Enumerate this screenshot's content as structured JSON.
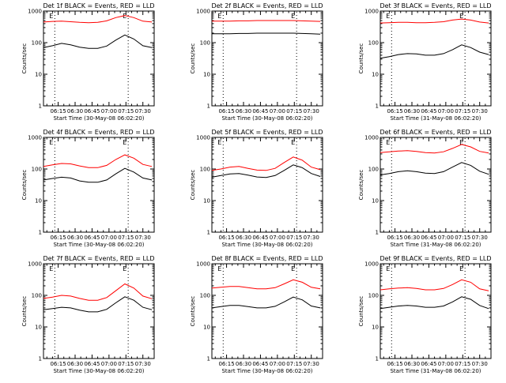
{
  "colors": {
    "events": "#000000",
    "lld": "#ff0000",
    "axis": "#000000",
    "background": "#ffffff"
  },
  "chart_data": [
    {
      "type": "line",
      "title": "Det 1f BLACK = Events, RED = LLD",
      "xlabel": "Start Time (30-May-08 06:02:20)",
      "ylabel": "Counts/sec",
      "x_ticks": [
        "06:15",
        "06:30",
        "06:45",
        "07:00",
        "07:15",
        "07:30"
      ],
      "y_ticks": [
        "1",
        "10",
        "100",
        "1000"
      ],
      "y_scale": "log",
      "ylim": [
        1,
        1000
      ],
      "xlim": [
        "06:02",
        "07:40"
      ],
      "markers": {
        "vlines": [
          "06:12",
          "07:17"
        ],
        "labels": [
          "E",
          "E"
        ]
      },
      "series": [
        {
          "name": "Events",
          "color": "#000000",
          "x": [
            "06:02",
            "06:10",
            "06:18",
            "06:26",
            "06:34",
            "06:42",
            "06:50",
            "06:58",
            "07:06",
            "07:14",
            "07:22",
            "07:30",
            "07:38"
          ],
          "y": [
            70,
            80,
            95,
            85,
            72,
            66,
            66,
            78,
            120,
            175,
            130,
            80,
            70
          ]
        },
        {
          "name": "LLD",
          "color": "#ff0000",
          "x": [
            "06:02",
            "06:10",
            "06:18",
            "06:26",
            "06:34",
            "06:42",
            "06:50",
            "06:58",
            "07:06",
            "07:14",
            "07:22",
            "07:30",
            "07:38"
          ],
          "y": [
            450,
            470,
            480,
            460,
            440,
            430,
            440,
            490,
            620,
            720,
            620,
            480,
            450
          ]
        }
      ]
    },
    {
      "type": "line",
      "title": "Det 2f BLACK = Events, RED = LLD",
      "xlabel": "Start Time (30-May-08 06:02:20)",
      "ylabel": "Counts/sec",
      "x_ticks": [
        "06:15",
        "06:30",
        "06:45",
        "07:00",
        "07:15",
        "07:30"
      ],
      "y_ticks": [
        "1",
        "10",
        "100",
        "1000"
      ],
      "y_scale": "log",
      "ylim": [
        1,
        1000
      ],
      "xlim": [
        "06:02",
        "07:40"
      ],
      "markers": {
        "vlines": [
          "06:12",
          "07:17"
        ],
        "labels": [
          "E",
          "E"
        ]
      },
      "series": [
        {
          "name": "Events",
          "color": "#000000",
          "x": [
            "06:02",
            "06:10",
            "06:18",
            "06:26",
            "06:34",
            "06:42",
            "06:50",
            "06:58",
            "07:06",
            "07:14",
            "07:22",
            "07:30",
            "07:38"
          ],
          "y": [
            190,
            190,
            190,
            195,
            195,
            200,
            200,
            200,
            200,
            200,
            195,
            190,
            185
          ]
        },
        {
          "name": "LLD",
          "color": "#ff0000",
          "x": [
            "06:02",
            "06:10",
            "06:18",
            "06:26",
            "06:34",
            "06:42",
            "06:50",
            "06:58",
            "07:06",
            "07:14",
            "07:22",
            "07:30",
            "07:38"
          ],
          "y": [
            480,
            480,
            480,
            490,
            490,
            500,
            500,
            500,
            500,
            500,
            490,
            480,
            470
          ]
        }
      ]
    },
    {
      "type": "line",
      "title": "Det 3f BLACK = Events, RED = LLD",
      "xlabel": "Start Time (31-May-08 06:02:20)",
      "ylabel": "Counts/sec",
      "x_ticks": [
        "06:15",
        "06:30",
        "06:45",
        "07:00",
        "07:15",
        "07:30"
      ],
      "y_ticks": [
        "1",
        "10",
        "100",
        "1000"
      ],
      "y_scale": "log",
      "ylim": [
        1,
        1000
      ],
      "xlim": [
        "06:02",
        "07:40"
      ],
      "markers": {
        "vlines": [
          "06:12",
          "07:17"
        ],
        "labels": [
          "E",
          "E"
        ]
      },
      "series": [
        {
          "name": "Events",
          "color": "#000000",
          "x": [
            "06:02",
            "06:10",
            "06:18",
            "06:26",
            "06:34",
            "06:42",
            "06:50",
            "06:58",
            "07:06",
            "07:14",
            "07:22",
            "07:30",
            "07:38"
          ],
          "y": [
            32,
            36,
            42,
            45,
            44,
            40,
            40,
            45,
            60,
            85,
            70,
            50,
            42
          ]
        },
        {
          "name": "LLD",
          "color": "#ff0000",
          "x": [
            "06:02",
            "06:10",
            "06:18",
            "06:26",
            "06:34",
            "06:42",
            "06:50",
            "06:58",
            "07:06",
            "07:14",
            "07:22",
            "07:30",
            "07:38"
          ],
          "y": [
            420,
            430,
            440,
            440,
            430,
            430,
            440,
            460,
            520,
            560,
            520,
            450,
            420
          ]
        }
      ]
    },
    {
      "type": "line",
      "title": "Det 4f BLACK = Events, RED = LLD",
      "xlabel": "Start Time (30-May-08 06:02:20)",
      "ylabel": "Counts/sec",
      "x_ticks": [
        "06:15",
        "06:30",
        "06:45",
        "07:00",
        "07:15",
        "07:30"
      ],
      "y_ticks": [
        "1",
        "10",
        "100",
        "1000"
      ],
      "y_scale": "log",
      "ylim": [
        1,
        1000
      ],
      "xlim": [
        "06:02",
        "07:40"
      ],
      "markers": {
        "vlines": [
          "06:12",
          "07:17"
        ],
        "labels": [
          "E",
          "E"
        ]
      },
      "series": [
        {
          "name": "Events",
          "color": "#000000",
          "x": [
            "06:02",
            "06:10",
            "06:18",
            "06:26",
            "06:34",
            "06:42",
            "06:50",
            "06:58",
            "07:06",
            "07:14",
            "07:22",
            "07:30",
            "07:38"
          ],
          "y": [
            45,
            50,
            55,
            52,
            42,
            38,
            38,
            45,
            70,
            105,
            80,
            52,
            45
          ]
        },
        {
          "name": "LLD",
          "color": "#ff0000",
          "x": [
            "06:02",
            "06:10",
            "06:18",
            "06:26",
            "06:34",
            "06:42",
            "06:50",
            "06:58",
            "07:06",
            "07:14",
            "07:22",
            "07:30",
            "07:38"
          ],
          "y": [
            120,
            135,
            150,
            145,
            125,
            110,
            110,
            130,
            200,
            280,
            220,
            140,
            120
          ]
        }
      ]
    },
    {
      "type": "line",
      "title": "Det 5f BLACK = Events, RED = LLD",
      "xlabel": "Start Time (30-May-08 06:02:20)",
      "ylabel": "Counts/sec",
      "x_ticks": [
        "06:15",
        "06:30",
        "06:45",
        "07:00",
        "07:15",
        "07:30"
      ],
      "y_ticks": [
        "1",
        "10",
        "100",
        "1000"
      ],
      "y_scale": "log",
      "ylim": [
        1,
        1000
      ],
      "xlim": [
        "06:02",
        "07:40"
      ],
      "markers": {
        "vlines": [
          "06:12",
          "07:17"
        ],
        "labels": [
          "E",
          "E"
        ]
      },
      "series": [
        {
          "name": "Events",
          "color": "#000000",
          "x": [
            "06:02",
            "06:10",
            "06:18",
            "06:26",
            "06:34",
            "06:42",
            "06:50",
            "06:58",
            "07:06",
            "07:14",
            "07:22",
            "07:30",
            "07:38"
          ],
          "y": [
            55,
            62,
            70,
            72,
            64,
            56,
            54,
            62,
            90,
            135,
            110,
            72,
            58
          ]
        },
        {
          "name": "LLD",
          "color": "#ff0000",
          "x": [
            "06:02",
            "06:10",
            "06:18",
            "06:26",
            "06:34",
            "06:42",
            "06:50",
            "06:58",
            "07:06",
            "07:14",
            "07:22",
            "07:30",
            "07:38"
          ],
          "y": [
            90,
            100,
            115,
            120,
            105,
            92,
            90,
            105,
            160,
            240,
            190,
            115,
            95
          ]
        }
      ]
    },
    {
      "type": "line",
      "title": "Det 6f BLACK = Events, RED = LLD",
      "xlabel": "Start Time (31-May-08 06:02:20)",
      "ylabel": "Counts/sec",
      "x_ticks": [
        "06:15",
        "06:30",
        "06:45",
        "07:00",
        "07:15",
        "07:30"
      ],
      "y_ticks": [
        "1",
        "10",
        "100",
        "1000"
      ],
      "y_scale": "log",
      "ylim": [
        1,
        1000
      ],
      "xlim": [
        "06:02",
        "07:40"
      ],
      "markers": {
        "vlines": [
          "06:12",
          "07:17"
        ],
        "labels": [
          "E",
          "E"
        ]
      },
      "series": [
        {
          "name": "Events",
          "color": "#000000",
          "x": [
            "06:02",
            "06:10",
            "06:18",
            "06:26",
            "06:34",
            "06:42",
            "06:50",
            "06:58",
            "07:06",
            "07:14",
            "07:22",
            "07:30",
            "07:38"
          ],
          "y": [
            65,
            72,
            82,
            88,
            82,
            74,
            72,
            82,
            115,
            160,
            130,
            85,
            68
          ]
        },
        {
          "name": "LLD",
          "color": "#ff0000",
          "x": [
            "06:02",
            "06:10",
            "06:18",
            "06:26",
            "06:34",
            "06:42",
            "06:50",
            "06:58",
            "07:06",
            "07:14",
            "07:22",
            "07:30",
            "07:38"
          ],
          "y": [
            330,
            350,
            370,
            380,
            360,
            330,
            320,
            350,
            450,
            600,
            500,
            360,
            320
          ]
        }
      ]
    },
    {
      "type": "line",
      "title": "Det 7f BLACK = Events, RED = LLD",
      "xlabel": "Start Time (30-May-08 06:02:20)",
      "ylabel": "Counts/sec",
      "x_ticks": [
        "06:15",
        "06:30",
        "06:45",
        "07:00",
        "07:15",
        "07:30"
      ],
      "y_ticks": [
        "1",
        "10",
        "100",
        "1000"
      ],
      "y_scale": "log",
      "ylim": [
        1,
        1000
      ],
      "xlim": [
        "06:02",
        "07:40"
      ],
      "markers": {
        "vlines": [
          "06:12",
          "07:17"
        ],
        "labels": [
          "E",
          "E"
        ]
      },
      "series": [
        {
          "name": "Events",
          "color": "#000000",
          "x": [
            "06:02",
            "06:10",
            "06:18",
            "06:26",
            "06:34",
            "06:42",
            "06:50",
            "06:58",
            "07:06",
            "07:14",
            "07:22",
            "07:30",
            "07:38"
          ],
          "y": [
            35,
            38,
            42,
            40,
            34,
            30,
            30,
            36,
            58,
            90,
            70,
            42,
            35
          ]
        },
        {
          "name": "LLD",
          "color": "#ff0000",
          "x": [
            "06:02",
            "06:10",
            "06:18",
            "06:26",
            "06:34",
            "06:42",
            "06:50",
            "06:58",
            "07:06",
            "07:14",
            "07:22",
            "07:30",
            "07:38"
          ],
          "y": [
            80,
            88,
            100,
            95,
            80,
            70,
            70,
            85,
            140,
            230,
            170,
            95,
            78
          ]
        }
      ]
    },
    {
      "type": "line",
      "title": "Det 8f BLACK = Events, RED = LLD",
      "xlabel": "Start Time (30-May-08 06:02:20)",
      "ylabel": "Counts/sec",
      "x_ticks": [
        "06:15",
        "06:30",
        "06:45",
        "07:00",
        "07:15",
        "07:30"
      ],
      "y_ticks": [
        "1",
        "10",
        "100",
        "1000"
      ],
      "y_scale": "log",
      "ylim": [
        1,
        1000
      ],
      "xlim": [
        "06:02",
        "07:40"
      ],
      "markers": {
        "vlines": [
          "06:12",
          "07:17"
        ],
        "labels": [
          "E",
          "E"
        ]
      },
      "series": [
        {
          "name": "Events",
          "color": "#000000",
          "x": [
            "06:02",
            "06:10",
            "06:18",
            "06:26",
            "06:34",
            "06:42",
            "06:50",
            "06:58",
            "07:06",
            "07:14",
            "07:22",
            "07:30",
            "07:38"
          ],
          "y": [
            40,
            44,
            48,
            48,
            44,
            40,
            40,
            45,
            62,
            88,
            72,
            46,
            40
          ]
        },
        {
          "name": "LLD",
          "color": "#ff0000",
          "x": [
            "06:02",
            "06:10",
            "06:18",
            "06:26",
            "06:34",
            "06:42",
            "06:50",
            "06:58",
            "07:06",
            "07:14",
            "07:22",
            "07:30",
            "07:38"
          ],
          "y": [
            170,
            180,
            190,
            190,
            175,
            160,
            160,
            175,
            230,
            310,
            260,
            180,
            160
          ]
        }
      ]
    },
    {
      "type": "line",
      "title": "Det 9f BLACK = Events, RED = LLD",
      "xlabel": "Start Time (31-May-08 06:02:20)",
      "ylabel": "Counts/sec",
      "x_ticks": [
        "06:15",
        "06:30",
        "06:45",
        "07:00",
        "07:15",
        "07:30"
      ],
      "y_ticks": [
        "1",
        "10",
        "100",
        "1000"
      ],
      "y_scale": "log",
      "ylim": [
        1,
        1000
      ],
      "xlim": [
        "06:02",
        "07:40"
      ],
      "markers": {
        "vlines": [
          "06:12",
          "07:17"
        ],
        "labels": [
          "E",
          "E"
        ]
      },
      "series": [
        {
          "name": "Events",
          "color": "#000000",
          "x": [
            "06:02",
            "06:10",
            "06:18",
            "06:26",
            "06:34",
            "06:42",
            "06:50",
            "06:58",
            "07:06",
            "07:14",
            "07:22",
            "07:30",
            "07:38"
          ],
          "y": [
            38,
            42,
            46,
            48,
            46,
            42,
            42,
            46,
            62,
            90,
            75,
            48,
            38
          ]
        },
        {
          "name": "LLD",
          "color": "#ff0000",
          "x": [
            "06:02",
            "06:10",
            "06:18",
            "06:26",
            "06:34",
            "06:42",
            "06:50",
            "06:58",
            "07:06",
            "07:14",
            "07:22",
            "07:30",
            "07:38"
          ],
          "y": [
            150,
            160,
            170,
            175,
            165,
            150,
            150,
            165,
            220,
            310,
            260,
            160,
            140
          ]
        }
      ]
    }
  ]
}
